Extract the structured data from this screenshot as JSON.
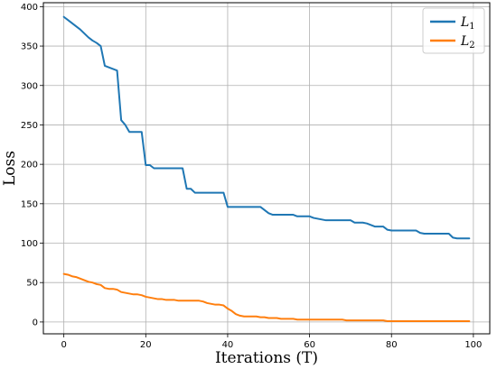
{
  "chart_data": {
    "type": "line",
    "xlabel": "Iterations (T)",
    "ylabel": "Loss",
    "xlim": [
      -5,
      104
    ],
    "ylim": [
      -15,
      405
    ],
    "xticks": [
      0,
      20,
      40,
      60,
      80,
      100
    ],
    "yticks": [
      0,
      50,
      100,
      150,
      200,
      250,
      300,
      350,
      400
    ],
    "grid": true,
    "legend_position": "top-right",
    "series": [
      {
        "name": "L1",
        "label_main": "L",
        "label_sub": "1",
        "color": "#1f77b4",
        "x": [
          0,
          1,
          2,
          3,
          4,
          5,
          6,
          7,
          8,
          9,
          10,
          11,
          12,
          13,
          14,
          15,
          16,
          17,
          18,
          19,
          20,
          21,
          22,
          23,
          24,
          25,
          26,
          27,
          28,
          29,
          30,
          31,
          32,
          33,
          34,
          35,
          36,
          37,
          38,
          39,
          40,
          41,
          42,
          43,
          44,
          45,
          46,
          47,
          48,
          49,
          50,
          51,
          52,
          53,
          54,
          55,
          56,
          57,
          58,
          59,
          60,
          61,
          62,
          63,
          64,
          65,
          66,
          67,
          68,
          69,
          70,
          71,
          72,
          73,
          74,
          75,
          76,
          77,
          78,
          79,
          80,
          81,
          82,
          83,
          84,
          85,
          86,
          87,
          88,
          89,
          90,
          91,
          92,
          93,
          94,
          95,
          96,
          97,
          98,
          99
        ],
        "y": [
          387,
          383,
          379,
          375,
          371,
          366,
          361,
          357,
          354,
          350,
          325,
          323,
          321,
          319,
          256,
          250,
          241,
          241,
          241,
          241,
          199,
          199,
          195,
          195,
          195,
          195,
          195,
          195,
          195,
          195,
          169,
          169,
          164,
          164,
          164,
          164,
          164,
          164,
          164,
          164,
          146,
          146,
          146,
          146,
          146,
          146,
          146,
          146,
          146,
          142,
          138,
          136,
          136,
          136,
          136,
          136,
          136,
          134,
          134,
          134,
          134,
          132,
          131,
          130,
          129,
          129,
          129,
          129,
          129,
          129,
          129,
          126,
          126,
          126,
          125,
          123,
          121,
          121,
          121,
          117,
          116,
          116,
          116,
          116,
          116,
          116,
          116,
          113,
          112,
          112,
          112,
          112,
          112,
          112,
          112,
          107,
          106,
          106,
          106,
          106
        ]
      },
      {
        "name": "L2",
        "label_main": "L",
        "label_sub": "2",
        "color": "#ff7f0e",
        "x": [
          0,
          1,
          2,
          3,
          4,
          5,
          6,
          7,
          8,
          9,
          10,
          11,
          12,
          13,
          14,
          15,
          16,
          17,
          18,
          19,
          20,
          21,
          22,
          23,
          24,
          25,
          26,
          27,
          28,
          29,
          30,
          31,
          32,
          33,
          34,
          35,
          36,
          37,
          38,
          39,
          40,
          41,
          42,
          43,
          44,
          45,
          46,
          47,
          48,
          49,
          50,
          51,
          52,
          53,
          54,
          55,
          56,
          57,
          58,
          59,
          60,
          61,
          62,
          63,
          64,
          65,
          66,
          67,
          68,
          69,
          70,
          71,
          72,
          73,
          74,
          75,
          76,
          77,
          78,
          79,
          80,
          81,
          82,
          83,
          84,
          85,
          86,
          87,
          88,
          89,
          90,
          91,
          92,
          93,
          94,
          95,
          96,
          97,
          98,
          99
        ],
        "y": [
          61,
          60,
          58,
          57,
          55,
          53,
          51,
          50,
          48,
          47,
          43,
          42,
          42,
          41,
          38,
          37,
          36,
          35,
          35,
          34,
          32,
          31,
          30,
          29,
          29,
          28,
          28,
          28,
          27,
          27,
          27,
          27,
          27,
          27,
          26,
          24,
          23,
          22,
          22,
          21,
          17,
          14,
          10,
          8,
          7,
          7,
          7,
          7,
          6,
          6,
          5,
          5,
          5,
          4,
          4,
          4,
          4,
          3,
          3,
          3,
          3,
          3,
          3,
          3,
          3,
          3,
          3,
          3,
          3,
          2,
          2,
          2,
          2,
          2,
          2,
          2,
          2,
          2,
          2,
          1,
          1,
          1,
          1,
          1,
          1,
          1,
          1,
          1,
          1,
          1,
          1,
          1,
          1,
          1,
          1,
          1,
          1,
          1,
          1,
          1
        ]
      }
    ]
  }
}
